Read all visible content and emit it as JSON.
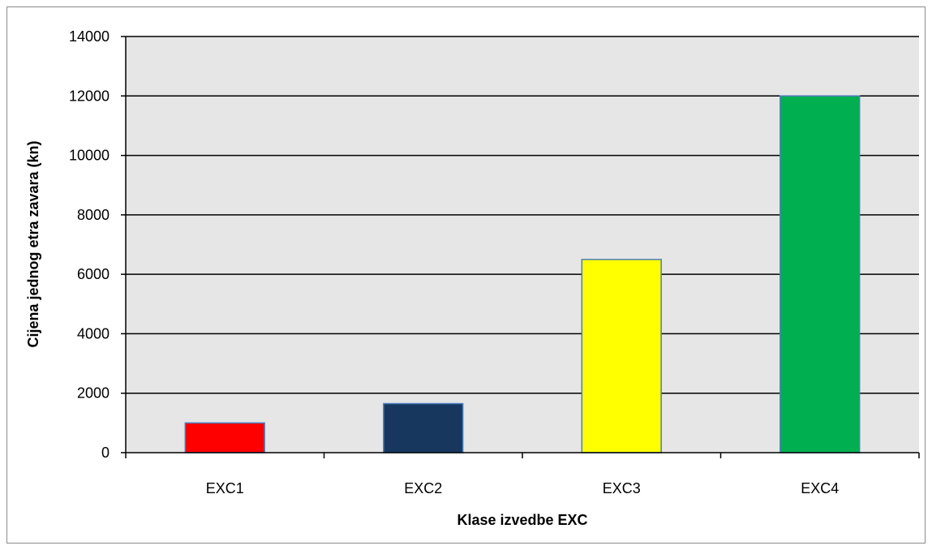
{
  "chart_data": {
    "type": "bar",
    "categories": [
      "EXC1",
      "EXC2",
      "EXC3",
      "EXC4"
    ],
    "values": [
      1000,
      1650,
      6500,
      12000
    ],
    "bar_colors": [
      "#ff0000",
      "#17375e",
      "#ffff00",
      "#00b050"
    ],
    "bar_edge_color": "#4a7ebb",
    "plot_background": "#e6e6e6",
    "gridline_color": "#000000",
    "xlabel": "Klase izvedbe EXC",
    "ylabel": "Cijena jednog etra zavara (kn)",
    "ylim": [
      0,
      14000
    ],
    "yticks": [
      "0",
      "2000",
      "4000",
      "6000",
      "8000",
      "10000",
      "12000",
      "14000"
    ],
    "grid": true,
    "legend": "none"
  }
}
